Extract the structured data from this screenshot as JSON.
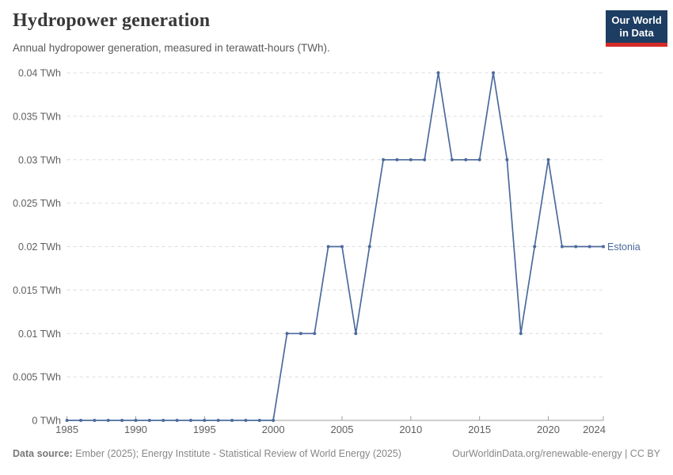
{
  "header": {
    "title": "Hydropower generation",
    "subtitle": "Annual hydropower generation, measured in terawatt-hours (TWh).",
    "logo": {
      "line1": "Our World",
      "line2": "in Data",
      "bg_color": "#1d3d63",
      "accent_color": "#d52b28"
    }
  },
  "chart_data": {
    "type": "line",
    "title": "Hydropower generation",
    "unit": "TWh",
    "ylim": [
      0,
      0.04
    ],
    "grid": "horizontal-dashed",
    "legend_position": "end-of-line-label",
    "x": [
      1985,
      1986,
      1987,
      1988,
      1989,
      1990,
      1991,
      1992,
      1993,
      1994,
      1995,
      1996,
      1997,
      1998,
      1999,
      2000,
      2001,
      2002,
      2003,
      2004,
      2005,
      2006,
      2007,
      2008,
      2009,
      2010,
      2011,
      2012,
      2013,
      2014,
      2015,
      2016,
      2017,
      2018,
      2019,
      2020,
      2021,
      2022,
      2023,
      2024
    ],
    "series": [
      {
        "name": "Estonia",
        "color": "#4c6a9c",
        "values": [
          0,
          0,
          0,
          0,
          0,
          0,
          0,
          0,
          0,
          0,
          0,
          0,
          0,
          0,
          0,
          0,
          0.01,
          0.01,
          0.01,
          0.02,
          0.02,
          0.01,
          0.02,
          0.03,
          0.03,
          0.03,
          0.03,
          0.04,
          0.03,
          0.03,
          0.03,
          0.04,
          0.03,
          0.01,
          0.02,
          0.03,
          0.02,
          0.02,
          0.02,
          0.02
        ]
      }
    ],
    "yticks": [
      {
        "value": 0,
        "label": "0 TWh"
      },
      {
        "value": 0.005,
        "label": "0.005 TWh"
      },
      {
        "value": 0.01,
        "label": "0.01 TWh"
      },
      {
        "value": 0.015,
        "label": "0.015 TWh"
      },
      {
        "value": 0.02,
        "label": "0.02 TWh"
      },
      {
        "value": 0.025,
        "label": "0.025 TWh"
      },
      {
        "value": 0.03,
        "label": "0.03 TWh"
      },
      {
        "value": 0.035,
        "label": "0.035 TWh"
      },
      {
        "value": 0.04,
        "label": "0.04 TWh"
      }
    ],
    "xticks": [
      1985,
      1990,
      1995,
      2000,
      2005,
      2010,
      2015,
      2020,
      2024
    ],
    "colors": {
      "gridline": "#dcdcdc",
      "axis": "#9e9e9e",
      "tick_label": "#5f5f5f"
    }
  },
  "footer": {
    "source_label": "Data source:",
    "source_text": "Ember (2025); Energy Institute - Statistical Review of World Energy (2025)",
    "right_text": "OurWorldinData.org/renewable-energy | CC BY"
  }
}
